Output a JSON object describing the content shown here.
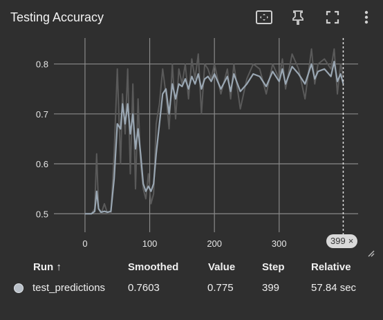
{
  "header": {
    "title": "Testing Accuracy",
    "icons": [
      "fit-domain-icon",
      "pin-icon",
      "fullscreen-icon",
      "more-vert-icon"
    ]
  },
  "chart_data": {
    "type": "line",
    "title": "",
    "xlabel": "",
    "ylabel": "",
    "xlim": [
      -48,
      422
    ],
    "ylim": [
      0.463,
      0.852
    ],
    "x_ticks": [
      0,
      100,
      200,
      300
    ],
    "y_ticks": [
      0.5,
      0.6,
      0.7,
      0.8
    ],
    "grid": true,
    "cursor_step": 399,
    "series": [
      {
        "name": "test_predictions",
        "color": "#9aa7b3",
        "x": [
          0,
          5,
          10,
          15,
          18,
          21,
          25,
          30,
          35,
          40,
          45,
          50,
          55,
          58,
          62,
          66,
          70,
          74,
          78,
          82,
          86,
          90,
          94,
          98,
          102,
          106,
          110,
          115,
          120,
          125,
          130,
          135,
          140,
          145,
          150,
          155,
          160,
          165,
          170,
          175,
          180,
          185,
          190,
          195,
          200,
          210,
          220,
          225,
          230,
          240,
          250,
          260,
          270,
          280,
          290,
          300,
          305,
          310,
          320,
          330,
          340,
          350,
          355,
          360,
          370,
          380,
          385,
          390,
          395,
          399
        ],
        "raw": [
          0.5,
          0.5,
          0.5,
          0.51,
          0.62,
          0.51,
          0.5,
          0.52,
          0.5,
          0.5,
          0.62,
          0.79,
          0.6,
          0.74,
          0.66,
          0.79,
          0.58,
          0.76,
          0.55,
          0.73,
          0.6,
          0.55,
          0.53,
          0.58,
          0.52,
          0.54,
          0.68,
          0.72,
          0.79,
          0.74,
          0.67,
          0.8,
          0.69,
          0.79,
          0.76,
          0.8,
          0.73,
          0.81,
          0.77,
          0.82,
          0.7,
          0.8,
          0.79,
          0.77,
          0.8,
          0.74,
          0.79,
          0.73,
          0.8,
          0.71,
          0.77,
          0.8,
          0.79,
          0.74,
          0.8,
          0.77,
          0.81,
          0.75,
          0.82,
          0.79,
          0.73,
          0.83,
          0.76,
          0.8,
          0.81,
          0.79,
          0.83,
          0.74,
          0.8,
          0.775
        ],
        "smoothed": [
          0.5,
          0.5,
          0.5,
          0.505,
          0.545,
          0.51,
          0.503,
          0.505,
          0.503,
          0.505,
          0.57,
          0.68,
          0.67,
          0.72,
          0.68,
          0.72,
          0.66,
          0.7,
          0.63,
          0.67,
          0.62,
          0.56,
          0.545,
          0.555,
          0.545,
          0.56,
          0.62,
          0.68,
          0.74,
          0.75,
          0.7,
          0.76,
          0.73,
          0.76,
          0.755,
          0.77,
          0.75,
          0.775,
          0.76,
          0.78,
          0.75,
          0.77,
          0.775,
          0.765,
          0.78,
          0.75,
          0.775,
          0.745,
          0.78,
          0.745,
          0.76,
          0.78,
          0.775,
          0.755,
          0.785,
          0.765,
          0.79,
          0.76,
          0.795,
          0.78,
          0.76,
          0.8,
          0.77,
          0.785,
          0.79,
          0.775,
          0.805,
          0.765,
          0.78,
          0.7603
        ]
      }
    ]
  },
  "step_chip": {
    "label": "399",
    "close": "×"
  },
  "table": {
    "headers": {
      "run": "Run ↑",
      "smoothed": "Smoothed",
      "value": "Value",
      "step": "Step",
      "relative": "Relative"
    },
    "row": {
      "run": "test_predictions",
      "smoothed": "0.7603",
      "value": "0.775",
      "step": "399",
      "relative": "57.84 sec",
      "color": "#b9c0c8"
    }
  }
}
